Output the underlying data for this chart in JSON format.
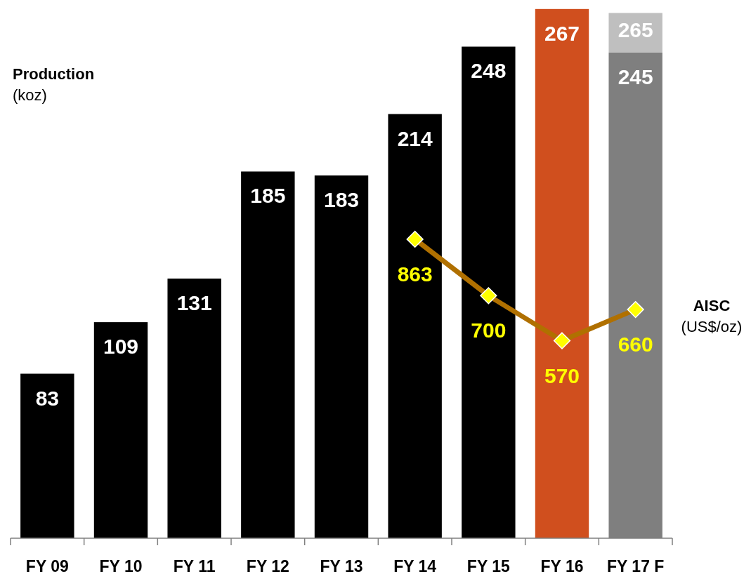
{
  "chart_data": {
    "type": "bar",
    "stacked": true,
    "ylabel": "Production\n(koz)",
    "y2label": "AISC\n(US$/oz)",
    "categories": [
      "FY 09",
      "FY 10",
      "FY 11",
      "FY 12",
      "FY 13",
      "FY 14",
      "FY 15",
      "FY 16",
      "FY 17 F"
    ],
    "series": [
      {
        "values": [
          83,
          109,
          131,
          185,
          183,
          214,
          248,
          267,
          245
        ],
        "colors": [
          "#000000",
          "#000000",
          "#000000",
          "#000000",
          "#000000",
          "#000000",
          "#000000",
          "#d04f1e",
          "#7f7f7f"
        ],
        "value_labels": [
          "83",
          "109",
          "131",
          "185",
          "183",
          "214",
          "248",
          "267",
          "245"
        ]
      },
      {
        "values": [
          null,
          null,
          null,
          null,
          null,
          null,
          null,
          null,
          20
        ],
        "color": "#bfbfbf"
      },
      {
        "type": "line",
        "axis": "y2",
        "color": "#b07000",
        "marker": "diamond",
        "values": [
          null,
          null,
          null,
          null,
          null,
          863,
          700,
          570,
          660
        ],
        "value_labels": [
          null,
          null,
          null,
          null,
          null,
          "863",
          "700",
          "570",
          "660"
        ]
      }
    ],
    "totals": [
      null,
      null,
      null,
      null,
      null,
      null,
      null,
      null,
      "265"
    ]
  }
}
